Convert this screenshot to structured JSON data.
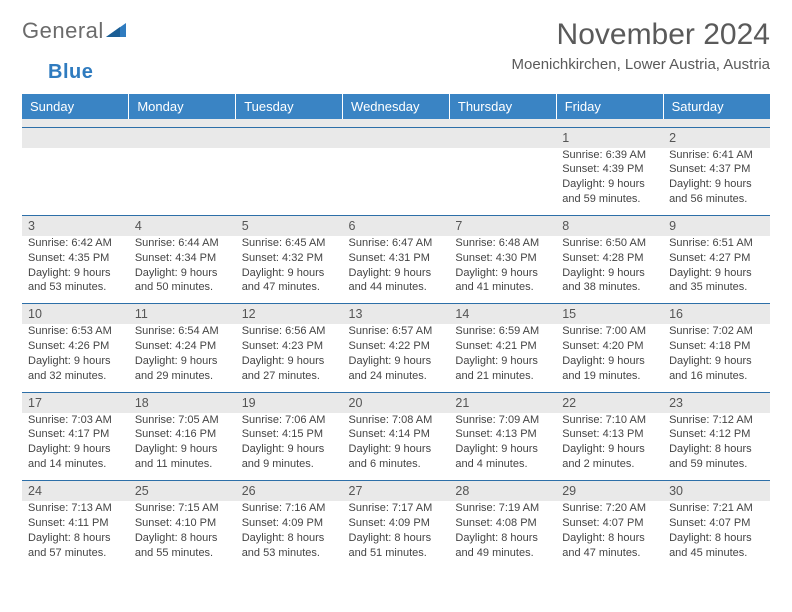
{
  "logo": {
    "text_gray": "General",
    "text_blue": "Blue"
  },
  "title": "November 2024",
  "location": "Moenichkirchen, Lower Austria, Austria",
  "colors": {
    "header_bg": "#3a84c4",
    "header_text": "#ffffff",
    "daynum_bg": "#e9e9e9",
    "rule": "#2d6fa8",
    "body_text": "#444444",
    "title_text": "#5a5a5a"
  },
  "weekdays": [
    "Sunday",
    "Monday",
    "Tuesday",
    "Wednesday",
    "Thursday",
    "Friday",
    "Saturday"
  ],
  "weeks": [
    [
      null,
      null,
      null,
      null,
      null,
      {
        "num": "1",
        "sunrise": "Sunrise: 6:39 AM",
        "sunset": "Sunset: 4:39 PM",
        "daylight": "Daylight: 9 hours and 59 minutes."
      },
      {
        "num": "2",
        "sunrise": "Sunrise: 6:41 AM",
        "sunset": "Sunset: 4:37 PM",
        "daylight": "Daylight: 9 hours and 56 minutes."
      }
    ],
    [
      {
        "num": "3",
        "sunrise": "Sunrise: 6:42 AM",
        "sunset": "Sunset: 4:35 PM",
        "daylight": "Daylight: 9 hours and 53 minutes."
      },
      {
        "num": "4",
        "sunrise": "Sunrise: 6:44 AM",
        "sunset": "Sunset: 4:34 PM",
        "daylight": "Daylight: 9 hours and 50 minutes."
      },
      {
        "num": "5",
        "sunrise": "Sunrise: 6:45 AM",
        "sunset": "Sunset: 4:32 PM",
        "daylight": "Daylight: 9 hours and 47 minutes."
      },
      {
        "num": "6",
        "sunrise": "Sunrise: 6:47 AM",
        "sunset": "Sunset: 4:31 PM",
        "daylight": "Daylight: 9 hours and 44 minutes."
      },
      {
        "num": "7",
        "sunrise": "Sunrise: 6:48 AM",
        "sunset": "Sunset: 4:30 PM",
        "daylight": "Daylight: 9 hours and 41 minutes."
      },
      {
        "num": "8",
        "sunrise": "Sunrise: 6:50 AM",
        "sunset": "Sunset: 4:28 PM",
        "daylight": "Daylight: 9 hours and 38 minutes."
      },
      {
        "num": "9",
        "sunrise": "Sunrise: 6:51 AM",
        "sunset": "Sunset: 4:27 PM",
        "daylight": "Daylight: 9 hours and 35 minutes."
      }
    ],
    [
      {
        "num": "10",
        "sunrise": "Sunrise: 6:53 AM",
        "sunset": "Sunset: 4:26 PM",
        "daylight": "Daylight: 9 hours and 32 minutes."
      },
      {
        "num": "11",
        "sunrise": "Sunrise: 6:54 AM",
        "sunset": "Sunset: 4:24 PM",
        "daylight": "Daylight: 9 hours and 29 minutes."
      },
      {
        "num": "12",
        "sunrise": "Sunrise: 6:56 AM",
        "sunset": "Sunset: 4:23 PM",
        "daylight": "Daylight: 9 hours and 27 minutes."
      },
      {
        "num": "13",
        "sunrise": "Sunrise: 6:57 AM",
        "sunset": "Sunset: 4:22 PM",
        "daylight": "Daylight: 9 hours and 24 minutes."
      },
      {
        "num": "14",
        "sunrise": "Sunrise: 6:59 AM",
        "sunset": "Sunset: 4:21 PM",
        "daylight": "Daylight: 9 hours and 21 minutes."
      },
      {
        "num": "15",
        "sunrise": "Sunrise: 7:00 AM",
        "sunset": "Sunset: 4:20 PM",
        "daylight": "Daylight: 9 hours and 19 minutes."
      },
      {
        "num": "16",
        "sunrise": "Sunrise: 7:02 AM",
        "sunset": "Sunset: 4:18 PM",
        "daylight": "Daylight: 9 hours and 16 minutes."
      }
    ],
    [
      {
        "num": "17",
        "sunrise": "Sunrise: 7:03 AM",
        "sunset": "Sunset: 4:17 PM",
        "daylight": "Daylight: 9 hours and 14 minutes."
      },
      {
        "num": "18",
        "sunrise": "Sunrise: 7:05 AM",
        "sunset": "Sunset: 4:16 PM",
        "daylight": "Daylight: 9 hours and 11 minutes."
      },
      {
        "num": "19",
        "sunrise": "Sunrise: 7:06 AM",
        "sunset": "Sunset: 4:15 PM",
        "daylight": "Daylight: 9 hours and 9 minutes."
      },
      {
        "num": "20",
        "sunrise": "Sunrise: 7:08 AM",
        "sunset": "Sunset: 4:14 PM",
        "daylight": "Daylight: 9 hours and 6 minutes."
      },
      {
        "num": "21",
        "sunrise": "Sunrise: 7:09 AM",
        "sunset": "Sunset: 4:13 PM",
        "daylight": "Daylight: 9 hours and 4 minutes."
      },
      {
        "num": "22",
        "sunrise": "Sunrise: 7:10 AM",
        "sunset": "Sunset: 4:13 PM",
        "daylight": "Daylight: 9 hours and 2 minutes."
      },
      {
        "num": "23",
        "sunrise": "Sunrise: 7:12 AM",
        "sunset": "Sunset: 4:12 PM",
        "daylight": "Daylight: 8 hours and 59 minutes."
      }
    ],
    [
      {
        "num": "24",
        "sunrise": "Sunrise: 7:13 AM",
        "sunset": "Sunset: 4:11 PM",
        "daylight": "Daylight: 8 hours and 57 minutes."
      },
      {
        "num": "25",
        "sunrise": "Sunrise: 7:15 AM",
        "sunset": "Sunset: 4:10 PM",
        "daylight": "Daylight: 8 hours and 55 minutes."
      },
      {
        "num": "26",
        "sunrise": "Sunrise: 7:16 AM",
        "sunset": "Sunset: 4:09 PM",
        "daylight": "Daylight: 8 hours and 53 minutes."
      },
      {
        "num": "27",
        "sunrise": "Sunrise: 7:17 AM",
        "sunset": "Sunset: 4:09 PM",
        "daylight": "Daylight: 8 hours and 51 minutes."
      },
      {
        "num": "28",
        "sunrise": "Sunrise: 7:19 AM",
        "sunset": "Sunset: 4:08 PM",
        "daylight": "Daylight: 8 hours and 49 minutes."
      },
      {
        "num": "29",
        "sunrise": "Sunrise: 7:20 AM",
        "sunset": "Sunset: 4:07 PM",
        "daylight": "Daylight: 8 hours and 47 minutes."
      },
      {
        "num": "30",
        "sunrise": "Sunrise: 7:21 AM",
        "sunset": "Sunset: 4:07 PM",
        "daylight": "Daylight: 8 hours and 45 minutes."
      }
    ]
  ]
}
